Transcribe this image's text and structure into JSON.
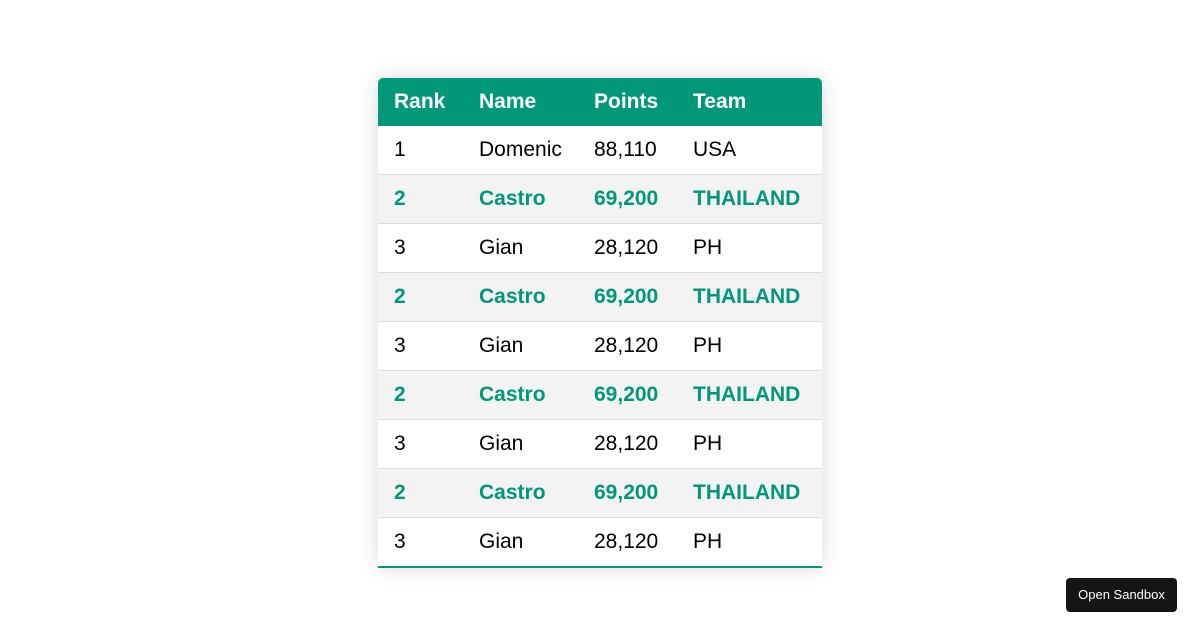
{
  "table": {
    "headers": [
      "Rank",
      "Name",
      "Points",
      "Team"
    ],
    "rows": [
      {
        "rank": "1",
        "name": "Domenic",
        "points": "88,110",
        "team": "USA",
        "highlighted": false
      },
      {
        "rank": "2",
        "name": "Castro",
        "points": "69,200",
        "team": "THAILAND",
        "highlighted": true
      },
      {
        "rank": "3",
        "name": "Gian",
        "points": "28,120",
        "team": "PH",
        "highlighted": false
      },
      {
        "rank": "2",
        "name": "Castro",
        "points": "69,200",
        "team": "THAILAND",
        "highlighted": true
      },
      {
        "rank": "3",
        "name": "Gian",
        "points": "28,120",
        "team": "PH",
        "highlighted": false
      },
      {
        "rank": "2",
        "name": "Castro",
        "points": "69,200",
        "team": "THAILAND",
        "highlighted": true
      },
      {
        "rank": "3",
        "name": "Gian",
        "points": "28,120",
        "team": "PH",
        "highlighted": false
      },
      {
        "rank": "2",
        "name": "Castro",
        "points": "69,200",
        "team": "THAILAND",
        "highlighted": true
      },
      {
        "rank": "3",
        "name": "Gian",
        "points": "28,120",
        "team": "PH",
        "highlighted": false
      }
    ]
  },
  "sandbox_button": {
    "label": "Open Sandbox"
  },
  "colors": {
    "accent": "#009879",
    "highlight_row_bg": "#f3f3f3",
    "button_bg": "#151515"
  }
}
